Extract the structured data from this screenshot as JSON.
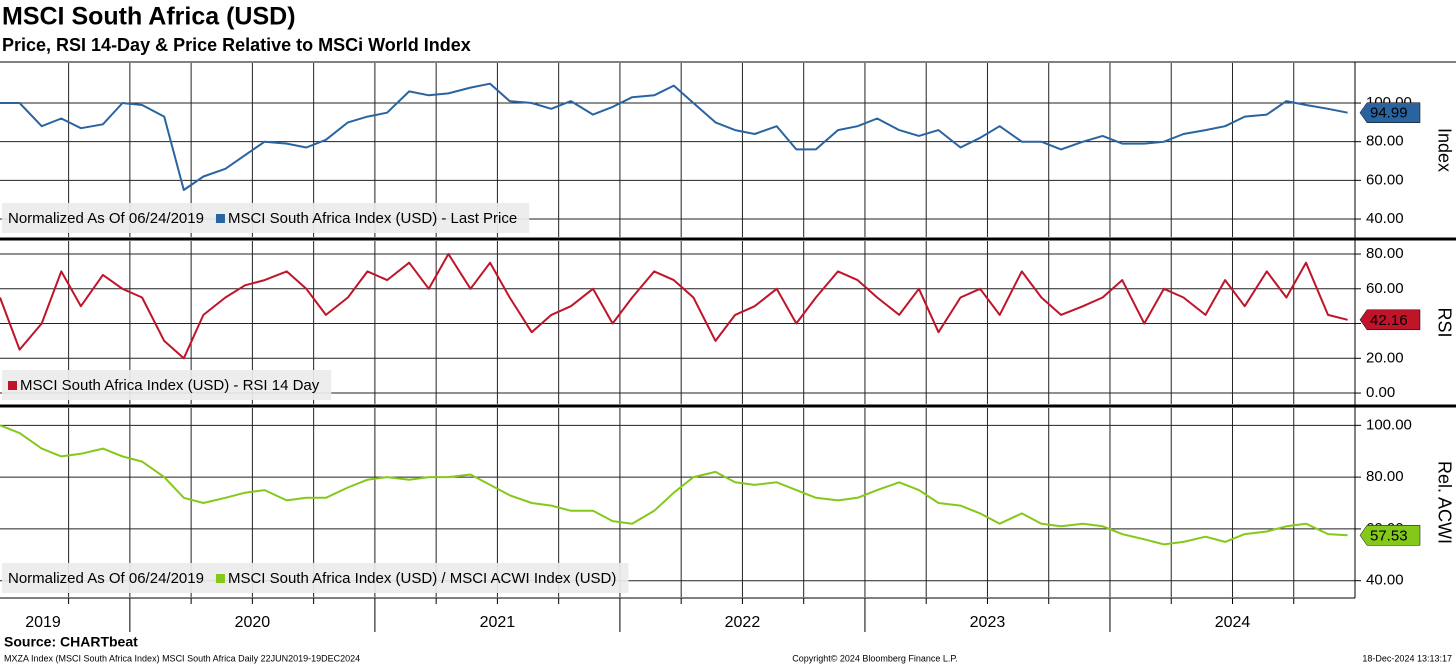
{
  "title": "MSCI South Africa (USD)",
  "subtitle": "Price, RSI 14-Day & Price Relative to MSCi World Index",
  "footer": {
    "source": "Source: CHARTbeat",
    "ticker": "MXZA Index (MSCI South Africa Index) MSCI South Africa  Daily 22JUN2019-19DEC2024",
    "copyright": "Copyright© 2024 Bloomberg Finance L.P.",
    "timestamp": "18-Dec-2024 13:13:17"
  },
  "chart_data": [
    {
      "type": "line",
      "axis_title": "Index",
      "legend_note": "Normalized As Of 06/24/2019",
      "xlim": [
        2019.47,
        2025.0
      ],
      "ylim": [
        30.7,
        120.7
      ],
      "yticks": [
        {
          "value": 40,
          "label": "40.00"
        },
        {
          "value": 60,
          "label": "60.00"
        },
        {
          "value": 80,
          "label": "80.00"
        },
        {
          "value": 100,
          "label": "100.00"
        }
      ],
      "grid": true,
      "x": [
        2019.47,
        2019.55,
        2019.64,
        2019.72,
        2019.8,
        2019.89,
        2019.97,
        2020.05,
        2020.14,
        2020.22,
        2020.3,
        2020.39,
        2020.47,
        2020.55,
        2020.64,
        2020.72,
        2020.8,
        2020.89,
        2020.97,
        2021.05,
        2021.14,
        2021.22,
        2021.3,
        2021.39,
        2021.47,
        2021.55,
        2021.64,
        2021.72,
        2021.8,
        2021.89,
        2021.97,
        2022.05,
        2022.14,
        2022.22,
        2022.3,
        2022.39,
        2022.47,
        2022.55,
        2022.64,
        2022.72,
        2022.8,
        2022.89,
        2022.97,
        2023.05,
        2023.14,
        2023.22,
        2023.3,
        2023.39,
        2023.47,
        2023.55,
        2023.64,
        2023.72,
        2023.8,
        2023.89,
        2023.97,
        2024.05,
        2024.14,
        2024.22,
        2024.3,
        2024.39,
        2024.47,
        2024.55,
        2024.64,
        2024.72,
        2024.8,
        2024.89,
        2024.97
      ],
      "series": [
        {
          "name": "MSCI South Africa Index (USD) - Last Price",
          "color": "#2a64a0",
          "values": [
            100,
            100,
            88,
            92,
            87,
            89,
            100,
            99,
            93,
            55,
            62,
            66,
            73,
            80,
            79,
            77,
            81,
            90,
            93,
            95,
            106,
            104,
            105,
            108,
            110,
            101,
            100,
            97,
            101,
            94,
            98,
            103,
            104,
            109,
            100,
            90,
            86,
            84,
            88,
            76,
            76,
            86,
            88,
            92,
            86,
            83,
            86,
            77,
            82,
            88,
            80,
            80,
            76,
            80,
            83,
            79,
            79,
            80,
            84,
            86,
            88,
            93,
            94,
            101,
            99,
            97,
            94.99
          ]
        }
      ]
    },
    {
      "type": "line",
      "axis_title": "RSI",
      "xlim": [
        2019.47,
        2025.0
      ],
      "ylim": [
        -6.3,
        87.5
      ],
      "yticks": [
        {
          "value": 0,
          "label": "0.00"
        },
        {
          "value": 20,
          "label": "20.00"
        },
        {
          "value": 40,
          "label": "40.00"
        },
        {
          "value": 60,
          "label": "60.00"
        },
        {
          "value": 80,
          "label": "80.00"
        }
      ],
      "grid": true,
      "x": [
        2019.47,
        2019.55,
        2019.64,
        2019.72,
        2019.8,
        2019.89,
        2019.97,
        2020.05,
        2020.14,
        2020.22,
        2020.3,
        2020.39,
        2020.47,
        2020.55,
        2020.64,
        2020.72,
        2020.8,
        2020.89,
        2020.97,
        2021.05,
        2021.14,
        2021.22,
        2021.3,
        2021.39,
        2021.47,
        2021.55,
        2021.64,
        2021.72,
        2021.8,
        2021.89,
        2021.97,
        2022.05,
        2022.14,
        2022.22,
        2022.3,
        2022.39,
        2022.47,
        2022.55,
        2022.64,
        2022.72,
        2022.8,
        2022.89,
        2022.97,
        2023.05,
        2023.14,
        2023.22,
        2023.3,
        2023.39,
        2023.47,
        2023.55,
        2023.64,
        2023.72,
        2023.8,
        2023.89,
        2023.97,
        2024.05,
        2024.14,
        2024.22,
        2024.3,
        2024.39,
        2024.47,
        2024.55,
        2024.64,
        2024.72,
        2024.8,
        2024.89,
        2024.97
      ],
      "series": [
        {
          "name": "MSCI South Africa Index (USD) - RSI 14 Day",
          "color": "#c0142a",
          "values": [
            55,
            25,
            40,
            70,
            50,
            68,
            60,
            55,
            30,
            20,
            45,
            55,
            62,
            65,
            70,
            60,
            45,
            55,
            70,
            65,
            75,
            60,
            80,
            60,
            75,
            55,
            35,
            45,
            50,
            60,
            40,
            55,
            70,
            65,
            55,
            30,
            45,
            50,
            60,
            40,
            55,
            70,
            65,
            55,
            45,
            60,
            35,
            55,
            60,
            45,
            70,
            55,
            45,
            50,
            55,
            65,
            40,
            60,
            55,
            45,
            65,
            50,
            70,
            55,
            75,
            45,
            42.16
          ]
        }
      ]
    },
    {
      "type": "line",
      "axis_title": "Rel. ACWI",
      "legend_note": "Normalized As Of 06/24/2019",
      "xlim": [
        2019.47,
        2025.0
      ],
      "ylim": [
        33.7,
        106.7
      ],
      "yticks": [
        {
          "value": 40,
          "label": "40.00"
        },
        {
          "value": 60,
          "label": "60.00"
        },
        {
          "value": 80,
          "label": "80.00"
        },
        {
          "value": 100,
          "label": "100.00"
        }
      ],
      "grid": true,
      "xticks": [
        {
          "value": 2019.5,
          "label": "2019"
        },
        {
          "value": 2020.5,
          "label": "2020"
        },
        {
          "value": 2021.5,
          "label": "2021"
        },
        {
          "value": 2022.5,
          "label": "2022"
        },
        {
          "value": 2023.5,
          "label": "2023"
        },
        {
          "value": 2024.5,
          "label": "2024"
        }
      ],
      "x_minor_ticks": [
        2019.75,
        2020,
        2020.25,
        2020.5,
        2020.75,
        2021,
        2021.25,
        2021.5,
        2021.75,
        2022,
        2022.25,
        2022.5,
        2022.75,
        2023,
        2023.25,
        2023.5,
        2023.75,
        2024,
        2024.25,
        2024.5,
        2024.75
      ],
      "x": [
        2019.47,
        2019.55,
        2019.64,
        2019.72,
        2019.8,
        2019.89,
        2019.97,
        2020.05,
        2020.14,
        2020.22,
        2020.3,
        2020.39,
        2020.47,
        2020.55,
        2020.64,
        2020.72,
        2020.8,
        2020.89,
        2020.97,
        2021.05,
        2021.14,
        2021.22,
        2021.3,
        2021.39,
        2021.47,
        2021.55,
        2021.64,
        2021.72,
        2021.8,
        2021.89,
        2021.97,
        2022.05,
        2022.14,
        2022.22,
        2022.3,
        2022.39,
        2022.47,
        2022.55,
        2022.64,
        2022.72,
        2022.8,
        2022.89,
        2022.97,
        2023.05,
        2023.14,
        2023.22,
        2023.3,
        2023.39,
        2023.47,
        2023.55,
        2023.64,
        2023.72,
        2023.8,
        2023.89,
        2023.97,
        2024.05,
        2024.14,
        2024.22,
        2024.3,
        2024.39,
        2024.47,
        2024.55,
        2024.64,
        2024.72,
        2024.8,
        2024.89,
        2024.97
      ],
      "series": [
        {
          "name": "MSCI South Africa Index (USD) / MSCI ACWI Index (USD)",
          "color": "#84c91a",
          "values": [
            100,
            97,
            91,
            88,
            89,
            91,
            88,
            86,
            80,
            72,
            70,
            72,
            74,
            75,
            71,
            72,
            72,
            76,
            79,
            80,
            79,
            80,
            80,
            81,
            77,
            73,
            70,
            69,
            67,
            67,
            63,
            62,
            67,
            74,
            80,
            82,
            78,
            77,
            78,
            75,
            72,
            71,
            72,
            75,
            78,
            75,
            70,
            69,
            66,
            62,
            66,
            62,
            61,
            62,
            61,
            58,
            56,
            54,
            55,
            57,
            55,
            58,
            59,
            61,
            62,
            58,
            57.53
          ]
        }
      ]
    }
  ]
}
